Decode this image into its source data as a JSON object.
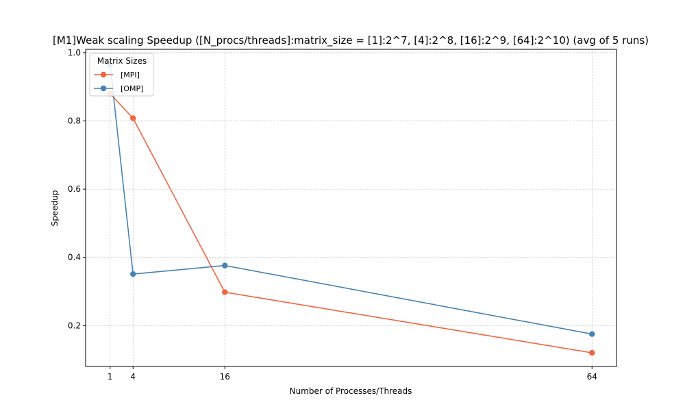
{
  "chart_data": {
    "type": "line",
    "title": "[M1]Weak scaling Speedup ([N_procs/threads]:matrix_size = [1]:2^7, [4]:2^8, [16]:2^9, [64]:2^10) (avg of 5 runs)",
    "xlabel": "Number of Processes/Threads",
    "ylabel": "Speedup",
    "x": [
      1,
      4,
      16,
      64
    ],
    "x_ticks": [
      "1",
      "4",
      "16",
      "64"
    ],
    "y_ticks": [
      "0.2",
      "0.4",
      "0.6",
      "0.8",
      "1.0"
    ],
    "xlim": [
      -2.2,
      67.2
    ],
    "ylim": [
      0.08,
      1.01
    ],
    "grid": true,
    "legend": {
      "title": "Matrix Sizes",
      "placement": "upper left"
    },
    "series": [
      {
        "name": "[MPI]",
        "color": "#f4633f",
        "values": [
          0.88,
          0.808,
          0.298,
          0.12
        ]
      },
      {
        "name": "[OMP]",
        "color": "#4682b4",
        "values": [
          0.965,
          0.351,
          0.376,
          0.175
        ]
      }
    ]
  }
}
